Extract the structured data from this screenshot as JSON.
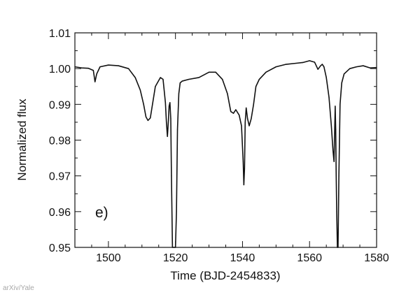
{
  "chart_data": {
    "type": "line",
    "panel_label": "e)",
    "xlabel": "Time (BJD-2454833)",
    "ylabel": "Normalized flux",
    "xlim": [
      1490,
      1580
    ],
    "ylim": [
      0.95,
      1.01
    ],
    "x_ticks": [
      1500,
      1520,
      1540,
      1560,
      1580
    ],
    "y_ticks": [
      0.95,
      0.96,
      0.97,
      0.98,
      0.99,
      1.0,
      1.01
    ],
    "y_tick_labels": [
      "0.95",
      "0.96",
      "0.97",
      "0.98",
      "0.99",
      "1.00",
      "1.01"
    ],
    "grid": false,
    "line_color": "#111111",
    "series": [
      {
        "x": [
          1490,
          1492,
          1494,
          1495.5,
          1496,
          1496.5,
          1497.5,
          1500,
          1503,
          1506,
          1508,
          1509.5,
          1510.5,
          1511.2,
          1511.8,
          1512.5,
          1514,
          1515.5,
          1516.3,
          1517,
          1517.3,
          1517.6,
          1517.9,
          1518.1,
          1518.35,
          1518.6,
          1518.8,
          1519.1,
          1519.4,
          1519.7,
          1520.0,
          1520.3,
          1520.6,
          1521,
          1521.4,
          1522,
          1524,
          1527,
          1530,
          1532,
          1534,
          1535.5,
          1536.5,
          1537.3,
          1538,
          1539,
          1539.7,
          1540.2,
          1540.4,
          1540.6,
          1540.8,
          1541.1,
          1541.5,
          1542,
          1542.6,
          1543.3,
          1544,
          1545,
          1547,
          1550,
          1553,
          1556,
          1558,
          1560,
          1561.5,
          1562.5,
          1563.3,
          1563.8,
          1564.3,
          1565,
          1565.8,
          1566.5,
          1567,
          1567.3,
          1567.5,
          1567.65,
          1567.8,
          1567.95,
          1568.1,
          1568.3,
          1568.5,
          1568.75,
          1569.1,
          1569.6,
          1570.3,
          1572,
          1574,
          1576,
          1578,
          1580
        ],
        "y": [
          1.0005,
          1.0002,
          1.0001,
          0.9995,
          0.9963,
          0.9985,
          1.0005,
          1.001,
          1.0008,
          1.0,
          0.9975,
          0.994,
          0.99,
          0.9865,
          0.9855,
          0.9862,
          0.995,
          0.9975,
          0.997,
          0.9905,
          0.985,
          0.981,
          0.9855,
          0.9895,
          0.9905,
          0.986,
          0.97,
          0.95,
          0.95,
          0.95,
          0.95,
          0.96,
          0.983,
          0.993,
          0.996,
          0.9965,
          0.997,
          0.9975,
          0.999,
          0.999,
          0.997,
          0.993,
          0.988,
          0.9875,
          0.9885,
          0.987,
          0.984,
          0.974,
          0.9675,
          0.972,
          0.985,
          0.989,
          0.986,
          0.984,
          0.986,
          0.99,
          0.995,
          0.997,
          0.999,
          1.0005,
          1.0012,
          1.0015,
          1.0017,
          1.0022,
          1.0018,
          0.9998,
          1.0008,
          1.0012,
          1.0005,
          0.9975,
          0.992,
          0.984,
          0.977,
          0.974,
          0.983,
          0.9895,
          0.983,
          0.97,
          0.96,
          0.95,
          0.95,
          0.97,
          0.99,
          0.996,
          0.9985,
          1.0,
          1.0005,
          1.0008,
          1.0002,
          1.0003
        ]
      }
    ]
  },
  "credit": "arXiv/Yale"
}
